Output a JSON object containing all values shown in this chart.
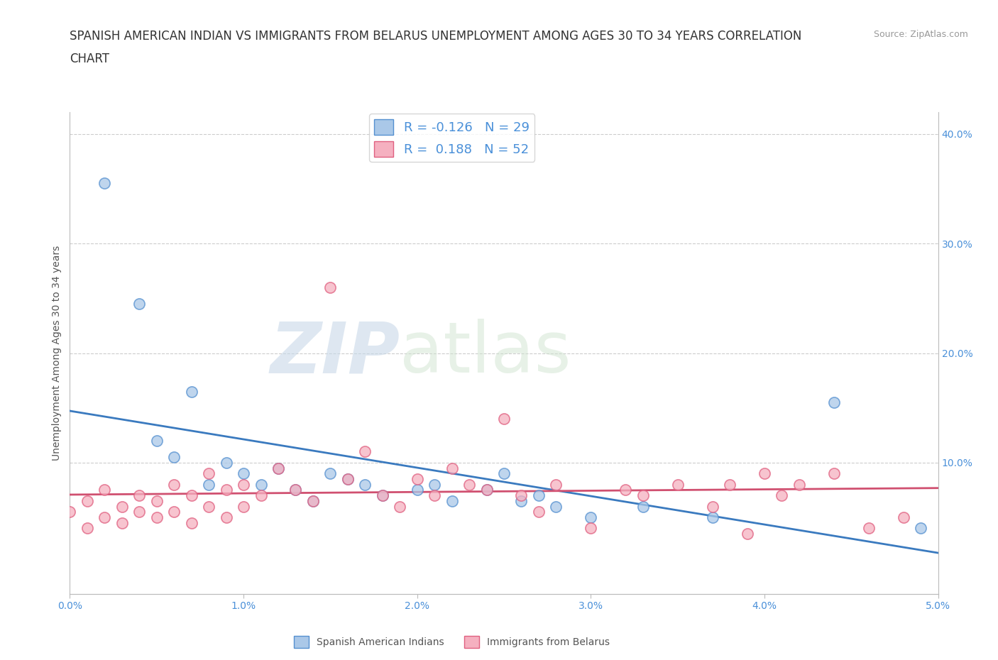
{
  "title_line1": "SPANISH AMERICAN INDIAN VS IMMIGRANTS FROM BELARUS UNEMPLOYMENT AMONG AGES 30 TO 34 YEARS CORRELATION",
  "title_line2": "CHART",
  "source": "Source: ZipAtlas.com",
  "ylabel": "Unemployment Among Ages 30 to 34 years",
  "series1_label": "Spanish American Indians",
  "series1_color": "#aac8e8",
  "series1_edge_color": "#5590d0",
  "series1_line_color": "#3a7abf",
  "series1_R": -0.126,
  "series1_N": 29,
  "series2_label": "Immigrants from Belarus",
  "series2_color": "#f5b0c0",
  "series2_edge_color": "#e06080",
  "series2_line_color": "#d05070",
  "series2_R": 0.188,
  "series2_N": 52,
  "xlim": [
    0.0,
    0.05
  ],
  "ylim": [
    -0.02,
    0.42
  ],
  "xtick_labels": [
    "0.0%",
    "1.0%",
    "2.0%",
    "3.0%",
    "4.0%",
    "5.0%"
  ],
  "xtick_values": [
    0.0,
    0.01,
    0.02,
    0.03,
    0.04,
    0.05
  ],
  "ytick_labels_right": [
    "10.0%",
    "20.0%",
    "30.0%",
    "40.0%"
  ],
  "ytick_values_right": [
    0.1,
    0.2,
    0.3,
    0.4
  ],
  "grid_color": "#cccccc",
  "background_color": "#ffffff",
  "tick_color": "#4a90d9",
  "series1_x": [
    0.002,
    0.004,
    0.005,
    0.006,
    0.007,
    0.008,
    0.009,
    0.01,
    0.011,
    0.012,
    0.013,
    0.014,
    0.015,
    0.016,
    0.017,
    0.018,
    0.02,
    0.021,
    0.022,
    0.024,
    0.025,
    0.026,
    0.027,
    0.028,
    0.03,
    0.033,
    0.037,
    0.044,
    0.049
  ],
  "series1_y": [
    0.355,
    0.245,
    0.12,
    0.105,
    0.165,
    0.08,
    0.1,
    0.09,
    0.08,
    0.095,
    0.075,
    0.065,
    0.09,
    0.085,
    0.08,
    0.07,
    0.075,
    0.08,
    0.065,
    0.075,
    0.09,
    0.065,
    0.07,
    0.06,
    0.05,
    0.06,
    0.05,
    0.155,
    0.04
  ],
  "series2_x": [
    0.0,
    0.001,
    0.001,
    0.002,
    0.002,
    0.003,
    0.003,
    0.004,
    0.004,
    0.005,
    0.005,
    0.006,
    0.006,
    0.007,
    0.007,
    0.008,
    0.008,
    0.009,
    0.009,
    0.01,
    0.01,
    0.011,
    0.012,
    0.013,
    0.014,
    0.015,
    0.016,
    0.017,
    0.018,
    0.019,
    0.02,
    0.021,
    0.022,
    0.023,
    0.024,
    0.025,
    0.026,
    0.027,
    0.028,
    0.03,
    0.032,
    0.033,
    0.035,
    0.037,
    0.038,
    0.039,
    0.04,
    0.041,
    0.042,
    0.044,
    0.046,
    0.048
  ],
  "series2_y": [
    0.055,
    0.04,
    0.065,
    0.05,
    0.075,
    0.06,
    0.045,
    0.07,
    0.055,
    0.065,
    0.05,
    0.08,
    0.055,
    0.07,
    0.045,
    0.09,
    0.06,
    0.075,
    0.05,
    0.08,
    0.06,
    0.07,
    0.095,
    0.075,
    0.065,
    0.26,
    0.085,
    0.11,
    0.07,
    0.06,
    0.085,
    0.07,
    0.095,
    0.08,
    0.075,
    0.14,
    0.07,
    0.055,
    0.08,
    0.04,
    0.075,
    0.07,
    0.08,
    0.06,
    0.08,
    0.035,
    0.09,
    0.07,
    0.08,
    0.09,
    0.04,
    0.05
  ],
  "title_fontsize": 12,
  "axis_label_fontsize": 10,
  "tick_fontsize": 10,
  "legend_fontsize": 13
}
